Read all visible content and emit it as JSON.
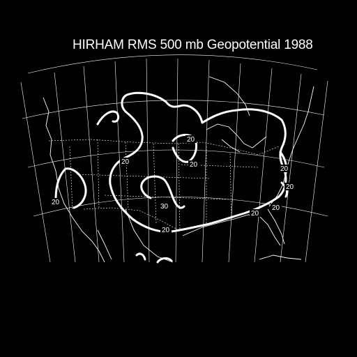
{
  "title": "HIRHAM RMS 500 mb Geopotential 1988",
  "contour_labels": [
    "20",
    "20",
    "20",
    "30",
    "20",
    "20",
    "20",
    "20",
    "20",
    "20"
  ]
}
